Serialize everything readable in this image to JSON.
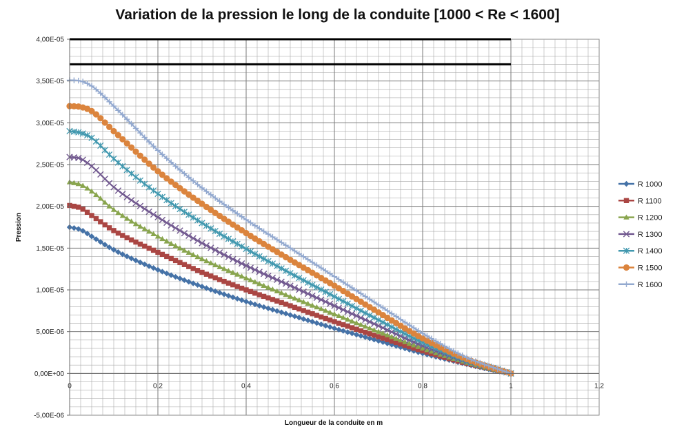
{
  "chart_data": {
    "type": "line",
    "title": "Variation de la pression le long de la conduite [1000 < Re < 1600]",
    "xlabel": "Longueur de la conduite en m",
    "ylabel": "Pression",
    "xlim": [
      0,
      1.2
    ],
    "ylim": [
      -5e-06,
      4e-05
    ],
    "x_ticks": [
      "0",
      "0,2",
      "0,4",
      "0,6",
      "0,8",
      "1",
      "1,2"
    ],
    "y_ticks": [
      "-5,00E-06",
      "0,00E+00",
      "5,00E-06",
      "1,00E-05",
      "1,50E-05",
      "2,00E-05",
      "2,50E-05",
      "3,00E-05",
      "3,50E-05",
      "4,00E-05"
    ],
    "grid": true,
    "legend_position": "right",
    "reference_lines": [
      {
        "y": 4e-05,
        "x_from": 0,
        "x_to": 1,
        "color": "#000000"
      },
      {
        "y": 3.7e-05,
        "x_from": 0,
        "x_to": 1,
        "color": "#000000"
      }
    ],
    "series": [
      {
        "name": "R 1000",
        "color": "#4572A7",
        "marker": "diamond",
        "x": [
          0,
          0.025,
          0.05,
          0.1,
          0.2,
          0.3,
          0.4,
          0.5,
          0.6,
          0.7,
          0.8,
          0.9,
          0.95,
          1.0
        ],
        "values": [
          1.75e-05,
          1.72e-05,
          1.64e-05,
          1.48e-05,
          1.24e-05,
          1.04e-05,
          8.6e-06,
          7e-06,
          5.4e-06,
          3.9e-06,
          2.4e-06,
          1.1e-06,
          5e-07,
          0
        ]
      },
      {
        "name": "R 1100",
        "color": "#AA4643",
        "marker": "square",
        "x": [
          0,
          0.025,
          0.05,
          0.1,
          0.2,
          0.3,
          0.4,
          0.5,
          0.6,
          0.7,
          0.8,
          0.9,
          0.95,
          1.0
        ],
        "values": [
          2.01e-05,
          1.98e-05,
          1.89e-05,
          1.71e-05,
          1.45e-05,
          1.21e-05,
          1e-05,
          8.1e-06,
          6.2e-06,
          4.4e-06,
          2.7e-06,
          1.2e-06,
          6e-07,
          0
        ]
      },
      {
        "name": "R 1200",
        "color": "#89A54E",
        "marker": "triangle",
        "x": [
          0,
          0.025,
          0.05,
          0.1,
          0.2,
          0.3,
          0.4,
          0.5,
          0.6,
          0.7,
          0.8,
          0.9,
          0.95,
          1.0
        ],
        "values": [
          2.29e-05,
          2.26e-05,
          2.18e-05,
          1.96e-05,
          1.64e-05,
          1.37e-05,
          1.14e-05,
          9.2e-06,
          7.1e-06,
          5e-06,
          3e-06,
          1.3e-06,
          6e-07,
          0
        ]
      },
      {
        "name": "R 1300",
        "color": "#71588F",
        "marker": "x",
        "x": [
          0,
          0.025,
          0.05,
          0.1,
          0.2,
          0.3,
          0.4,
          0.5,
          0.6,
          0.7,
          0.8,
          0.9,
          0.95,
          1.0
        ],
        "values": [
          2.59e-05,
          2.57e-05,
          2.48e-05,
          2.23e-05,
          1.87e-05,
          1.56e-05,
          1.29e-05,
          1.05e-05,
          8.1e-06,
          5.7e-06,
          3.3e-06,
          1.4e-06,
          7e-07,
          0
        ]
      },
      {
        "name": "R 1400",
        "color": "#4198AF",
        "marker": "star",
        "x": [
          0,
          0.025,
          0.05,
          0.1,
          0.2,
          0.3,
          0.4,
          0.5,
          0.6,
          0.7,
          0.8,
          0.9,
          0.95,
          1.0
        ],
        "values": [
          2.9e-05,
          2.88e-05,
          2.82e-05,
          2.57e-05,
          2.15e-05,
          1.8e-05,
          1.49e-05,
          1.2e-05,
          9.2e-06,
          6.4e-06,
          3.7e-06,
          1.5e-06,
          8e-07,
          0
        ]
      },
      {
        "name": "R 1500",
        "color": "#DB843D",
        "marker": "circle",
        "x": [
          0,
          0.025,
          0.05,
          0.1,
          0.2,
          0.3,
          0.4,
          0.5,
          0.6,
          0.7,
          0.8,
          0.9,
          0.95,
          1.0
        ],
        "values": [
          3.2e-05,
          3.19e-05,
          3.14e-05,
          2.9e-05,
          2.42e-05,
          2.03e-05,
          1.68e-05,
          1.36e-05,
          1.05e-05,
          7.3e-06,
          4.2e-06,
          1.7e-06,
          8e-07,
          0
        ]
      },
      {
        "name": "R 1600",
        "color": "#93A9CF",
        "marker": "plus",
        "x": [
          0,
          0.025,
          0.05,
          0.1,
          0.2,
          0.3,
          0.4,
          0.5,
          0.6,
          0.7,
          0.8,
          0.9,
          0.95,
          1.0
        ],
        "values": [
          3.51e-05,
          3.5e-05,
          3.44e-05,
          3.2e-05,
          2.67e-05,
          2.22e-05,
          1.84e-05,
          1.5e-05,
          1.16e-05,
          8.2e-06,
          4.8e-06,
          1.9e-06,
          9e-07,
          0
        ]
      }
    ]
  }
}
